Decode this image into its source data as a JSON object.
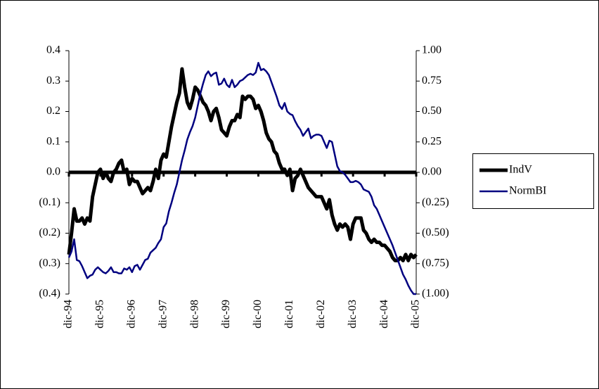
{
  "chart_data": {
    "type": "line",
    "categories": [
      "dic-94",
      null,
      null,
      null,
      null,
      null,
      null,
      null,
      null,
      null,
      null,
      null,
      "dic-95",
      null,
      null,
      null,
      null,
      null,
      null,
      null,
      null,
      null,
      null,
      null,
      "dic-96",
      null,
      null,
      null,
      null,
      null,
      null,
      null,
      null,
      null,
      null,
      null,
      "dic-97",
      null,
      null,
      null,
      null,
      null,
      null,
      null,
      null,
      null,
      null,
      null,
      "dic-98",
      null,
      null,
      null,
      null,
      null,
      null,
      null,
      null,
      null,
      null,
      null,
      "dic-99",
      null,
      null,
      null,
      null,
      null,
      null,
      null,
      null,
      null,
      null,
      null,
      "dic-00",
      null,
      null,
      null,
      null,
      null,
      null,
      null,
      null,
      null,
      null,
      null,
      "dic-01",
      null,
      null,
      null,
      null,
      null,
      null,
      null,
      null,
      null,
      null,
      null,
      "dic-02",
      null,
      null,
      null,
      null,
      null,
      null,
      null,
      null,
      null,
      null,
      null,
      "dic-03",
      null,
      null,
      null,
      null,
      null,
      null,
      null,
      null,
      null,
      null,
      null,
      "dic-04",
      null,
      null,
      null,
      null,
      null,
      null,
      null,
      null,
      null,
      null,
      null,
      "dic-05"
    ],
    "series": [
      {
        "name": "IndV",
        "color": "#000000",
        "values": [
          -0.27,
          -0.2,
          -0.12,
          -0.16,
          -0.16,
          -0.15,
          -0.17,
          -0.15,
          -0.16,
          -0.08,
          -0.04,
          0.0,
          0.01,
          -0.02,
          0.0,
          -0.02,
          -0.03,
          0.0,
          0.01,
          0.03,
          0.04,
          0.0,
          0.01,
          -0.04,
          -0.02,
          -0.03,
          -0.03,
          -0.05,
          -0.07,
          -0.06,
          -0.05,
          -0.06,
          -0.03,
          0.01,
          -0.02,
          0.04,
          0.06,
          0.05,
          0.1,
          0.15,
          0.19,
          0.23,
          0.26,
          0.34,
          0.28,
          0.23,
          0.21,
          0.24,
          0.28,
          0.27,
          0.25,
          0.23,
          0.22,
          0.2,
          0.17,
          0.2,
          0.21,
          0.18,
          0.14,
          0.13,
          0.12,
          0.15,
          0.17,
          0.17,
          0.19,
          0.18,
          0.25,
          0.24,
          0.25,
          0.25,
          0.24,
          0.21,
          0.22,
          0.2,
          0.17,
          0.13,
          0.11,
          0.1,
          0.07,
          0.06,
          0.03,
          0.01,
          0.01,
          -0.01,
          0.01,
          -0.06,
          -0.02,
          -0.01,
          0.01,
          -0.01,
          -0.03,
          -0.05,
          -0.06,
          -0.07,
          -0.08,
          -0.08,
          -0.08,
          -0.1,
          -0.12,
          -0.09,
          -0.14,
          -0.17,
          -0.19,
          -0.17,
          -0.18,
          -0.17,
          -0.18,
          -0.22,
          -0.17,
          -0.15,
          -0.15,
          -0.15,
          -0.19,
          -0.2,
          -0.22,
          -0.23,
          -0.22,
          -0.23,
          -0.23,
          -0.24,
          -0.24,
          -0.25,
          -0.26,
          -0.28,
          -0.29,
          -0.29,
          -0.28,
          -0.29,
          -0.27,
          -0.29,
          -0.27,
          -0.28,
          -0.27
        ]
      },
      {
        "name": "NormBI",
        "color": "#000080",
        "axis": "y2",
        "values": [
          -0.7,
          -0.65,
          -0.55,
          -0.72,
          -0.73,
          -0.77,
          -0.82,
          -0.87,
          -0.85,
          -0.84,
          -0.8,
          -0.78,
          -0.8,
          -0.82,
          -0.83,
          -0.81,
          -0.78,
          -0.82,
          -0.82,
          -0.83,
          -0.83,
          -0.79,
          -0.8,
          -0.78,
          -0.82,
          -0.77,
          -0.76,
          -0.8,
          -0.76,
          -0.72,
          -0.71,
          -0.66,
          -0.64,
          -0.62,
          -0.58,
          -0.55,
          -0.45,
          -0.42,
          -0.32,
          -0.25,
          -0.17,
          -0.1,
          0.0,
          0.1,
          0.18,
          0.27,
          0.33,
          0.38,
          0.45,
          0.55,
          0.65,
          0.73,
          0.8,
          0.83,
          0.79,
          0.81,
          0.82,
          0.72,
          0.73,
          0.77,
          0.72,
          0.7,
          0.76,
          0.7,
          0.72,
          0.75,
          0.76,
          0.78,
          0.8,
          0.81,
          0.8,
          0.82,
          0.9,
          0.84,
          0.85,
          0.83,
          0.8,
          0.74,
          0.68,
          0.62,
          0.55,
          0.52,
          0.57,
          0.5,
          0.48,
          0.47,
          0.42,
          0.38,
          0.35,
          0.3,
          0.33,
          0.36,
          0.28,
          0.3,
          0.31,
          0.31,
          0.3,
          0.25,
          0.2,
          0.26,
          0.25,
          0.15,
          0.05,
          0.01,
          0.0,
          -0.02,
          -0.05,
          -0.08,
          -0.08,
          -0.07,
          -0.08,
          -0.1,
          -0.14,
          -0.15,
          -0.16,
          -0.2,
          -0.27,
          -0.3,
          -0.35,
          -0.4,
          -0.45,
          -0.5,
          -0.55,
          -0.6,
          -0.66,
          -0.72,
          -0.78,
          -0.84,
          -0.88,
          -0.93,
          -0.97,
          -1.0,
          -1.0
        ]
      }
    ],
    "ylim": [
      -0.4,
      0.4
    ],
    "yticks": [
      {
        "value": -0.4,
        "label": "(0.4)"
      },
      {
        "value": -0.3,
        "label": "(0.3)"
      },
      {
        "value": -0.2,
        "label": "(0.2)"
      },
      {
        "value": -0.1,
        "label": "(0.1)"
      },
      {
        "value": 0,
        "label": "0.0"
      },
      0.1,
      0.2,
      0.3,
      0.4
    ],
    "y2lim": [
      -1,
      1
    ],
    "y2ticks": [
      {
        "value": -1,
        "label": "(1.00)"
      },
      {
        "value": -0.75,
        "label": "(0.75)"
      },
      {
        "value": -0.5,
        "label": "(0.50)"
      },
      {
        "value": -0.25,
        "label": "(0.25)"
      },
      {
        "value": 0,
        "label": "0.00"
      },
      0.25,
      {
        "value": 0.5,
        "label": "0.50"
      },
      0.75,
      {
        "value": 1,
        "label": "1.00"
      }
    ],
    "grid": false,
    "legend": "right"
  }
}
